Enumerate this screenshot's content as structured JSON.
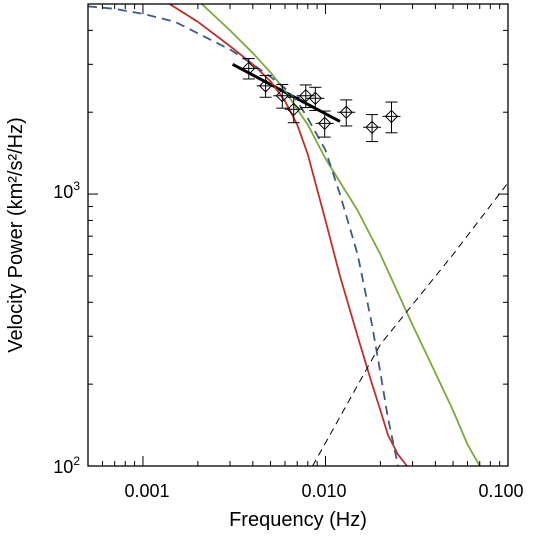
{
  "chart_data": {
    "type": "line",
    "xlabel": "Frequency (Hz)",
    "ylabel": "Velocity Power (km²/s²/Hz)",
    "xscale": "log",
    "yscale": "log",
    "xlim": [
      0.0005,
      0.1
    ],
    "ylim": [
      100,
      5000
    ],
    "grid": false,
    "x_tick_labels": [
      {
        "value": 0.001,
        "label": "0.001"
      },
      {
        "value": 0.01,
        "label": "0.010"
      },
      {
        "value": 0.1,
        "label": "0.100"
      }
    ],
    "y_tick_labels": [
      {
        "value": 100,
        "base": "10",
        "exp": "2"
      },
      {
        "value": 1000,
        "base": "10",
        "exp": "3"
      }
    ],
    "series": [
      {
        "style": "measurements with error bars (diamonds)",
        "color": "#000000",
        "points": [
          {
            "x": 0.0038,
            "y": 2900,
            "yerr": 250
          },
          {
            "x": 0.0047,
            "y": 2500,
            "yerr": 230
          },
          {
            "x": 0.0058,
            "y": 2300,
            "yerr": 230
          },
          {
            "x": 0.0067,
            "y": 2050,
            "yerr": 220
          },
          {
            "x": 0.0078,
            "y": 2300,
            "yerr": 220
          },
          {
            "x": 0.0088,
            "y": 2250,
            "yerr": 220
          },
          {
            "x": 0.0099,
            "y": 1820,
            "yerr": 200
          },
          {
            "x": 0.013,
            "y": 2000,
            "yerr": 220
          },
          {
            "x": 0.018,
            "y": 1760,
            "yerr": 200
          },
          {
            "x": 0.023,
            "y": 1930,
            "yerr": 250
          }
        ]
      },
      {
        "style": "thick black fit line",
        "color": "#000000",
        "x": [
          0.0031,
          0.012
        ],
        "y": [
          3000,
          1850
        ]
      },
      {
        "style": "red solid",
        "color": "#c0302a",
        "x": [
          0.0014,
          0.002,
          0.003,
          0.004,
          0.005,
          0.006,
          0.007,
          0.008,
          0.01,
          0.012,
          0.015,
          0.018,
          0.02,
          0.022,
          0.025,
          0.028
        ],
        "y": [
          5000,
          4300,
          3500,
          3000,
          2600,
          2200,
          1800,
          1400,
          800,
          500,
          300,
          200,
          160,
          130,
          110,
          100
        ]
      },
      {
        "style": "green solid",
        "color": "#7aaa3c",
        "x": [
          0.0021,
          0.003,
          0.004,
          0.005,
          0.006,
          0.007,
          0.008,
          0.01,
          0.015,
          0.02,
          0.03,
          0.04,
          0.05,
          0.06,
          0.07
        ],
        "y": [
          5000,
          4000,
          3300,
          2800,
          2400,
          2050,
          1800,
          1350,
          870,
          600,
          330,
          220,
          160,
          120,
          100
        ]
      },
      {
        "style": "blue dashed",
        "color": "#3b5a8a",
        "x": [
          0.0005,
          0.0007,
          0.001,
          0.0015,
          0.002,
          0.003,
          0.004,
          0.005,
          0.006,
          0.007,
          0.008,
          0.01,
          0.012,
          0.015,
          0.018,
          0.02,
          0.022,
          0.025
        ],
        "y": [
          4900,
          4800,
          4600,
          4300,
          3900,
          3400,
          3000,
          2700,
          2450,
          2200,
          1900,
          1450,
          1000,
          600,
          330,
          220,
          150,
          100
        ]
      },
      {
        "style": "black thin dashed",
        "color": "#000000",
        "x": [
          0.0085,
          0.02,
          0.05,
          0.1
        ],
        "y": [
          100,
          280,
          600,
          1100
        ]
      }
    ]
  }
}
